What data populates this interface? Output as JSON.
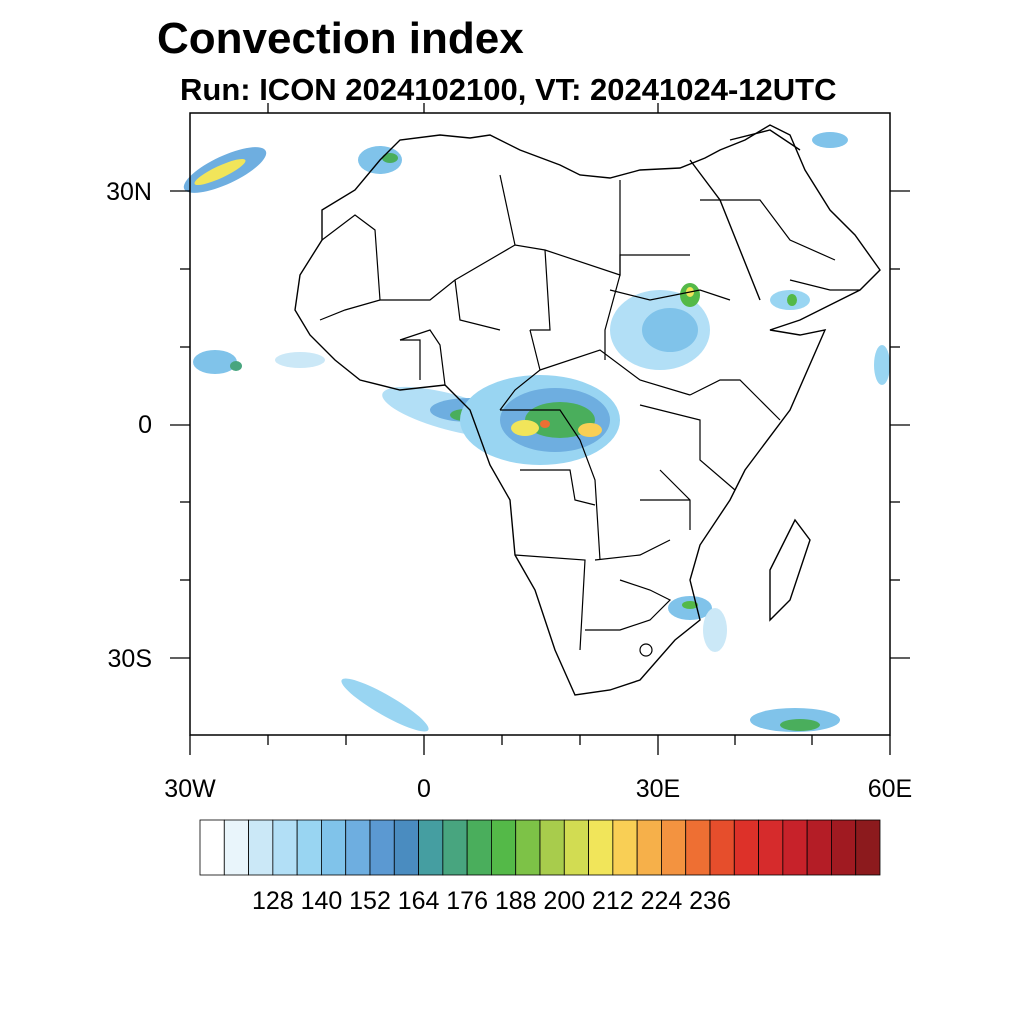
{
  "header": {
    "title": "Convection index",
    "subtitle": "Run: ICON 2024102100,  VT: 20241024-12UTC"
  },
  "map": {
    "region": "Africa",
    "lat_labels": [
      "30N",
      "0",
      "30S"
    ],
    "lon_labels": [
      "30W",
      "0",
      "30E",
      "60E"
    ],
    "background_color": "#ffffff",
    "land_fill": "none",
    "border_color": "#000000"
  },
  "chart_data": {
    "type": "heatmap",
    "title": "Convection index",
    "colorbar": {
      "tick_labels": [
        "128",
        "140",
        "152",
        "164",
        "176",
        "188",
        "200",
        "212",
        "224",
        "236"
      ],
      "tick_values": [
        128,
        140,
        152,
        164,
        176,
        188,
        200,
        212,
        224,
        236
      ],
      "colors": [
        "#ffffff",
        "#e9f5fb",
        "#cbe8f7",
        "#b2dff6",
        "#99d5f2",
        "#80c3ea",
        "#6eaee0",
        "#5b99d2",
        "#4a8cc0",
        "#459ea1",
        "#48a57f",
        "#4aae5c",
        "#54b948",
        "#7dc247",
        "#a8cc4c",
        "#d2dc52",
        "#f1e55a",
        "#f9cf55",
        "#f6b04a",
        "#f39340",
        "#ee6f33",
        "#e64e2c",
        "#dd3129",
        "#d62b2c",
        "#c7222a",
        "#b41d26",
        "#a01a21",
        "#8c1a1d"
      ]
    }
  }
}
